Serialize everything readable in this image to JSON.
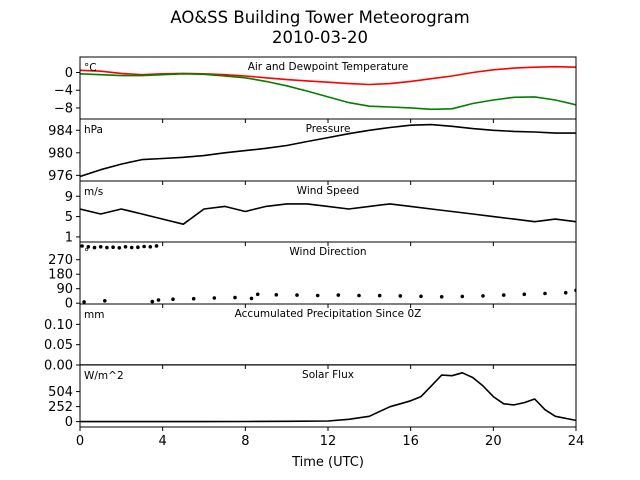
{
  "figure": {
    "title": "AO&SS Building Tower Meteorogram",
    "subtitle": "2010-03-20"
  },
  "chart_data": [
    {
      "type": "line",
      "title": "Air and Dewpoint Temperature",
      "unit_label": "°C",
      "xlim": [
        0,
        24
      ],
      "ylim": [
        -10.5,
        3.5
      ],
      "yticks": [
        0,
        -4,
        -8
      ],
      "series": [
        {
          "color": "#ff0000",
          "x": [
            0,
            1,
            2,
            3,
            4,
            5,
            6,
            7,
            8,
            9,
            10,
            11,
            12,
            13,
            14,
            15,
            16,
            17,
            18,
            19,
            20,
            21,
            22,
            23,
            24
          ],
          "y": [
            0.5,
            0.3,
            -0.2,
            -0.5,
            -0.3,
            -0.2,
            -0.3,
            -0.5,
            -0.8,
            -1.2,
            -1.6,
            -1.9,
            -2.2,
            -2.5,
            -2.7,
            -2.5,
            -2.0,
            -1.4,
            -0.8,
            0.0,
            0.6,
            1.0,
            1.2,
            1.3,
            1.2
          ]
        },
        {
          "color": "#008000",
          "x": [
            0,
            1,
            2,
            3,
            4,
            5,
            6,
            7,
            8,
            9,
            10,
            11,
            12,
            13,
            14,
            15,
            16,
            17,
            18,
            19,
            20,
            21,
            22,
            23,
            24
          ],
          "y": [
            -0.3,
            -0.5,
            -0.7,
            -0.7,
            -0.5,
            -0.3,
            -0.4,
            -0.8,
            -1.2,
            -2.0,
            -3.0,
            -4.2,
            -5.5,
            -6.8,
            -7.6,
            -7.8,
            -8.0,
            -8.3,
            -8.2,
            -7.0,
            -6.2,
            -5.6,
            -5.5,
            -6.2,
            -7.3
          ]
        }
      ]
    },
    {
      "type": "line",
      "title": "Pressure",
      "unit_label": "hPa",
      "xlim": [
        0,
        24
      ],
      "ylim": [
        975,
        986
      ],
      "yticks": [
        984,
        980,
        976
      ],
      "series": [
        {
          "color": "#000000",
          "x": [
            0,
            1,
            2,
            3,
            4,
            5,
            6,
            7,
            8,
            9,
            10,
            11,
            12,
            13,
            14,
            15,
            16,
            17,
            18,
            19,
            20,
            21,
            22,
            23,
            24
          ],
          "y": [
            975.8,
            977.0,
            978.0,
            978.8,
            979.0,
            979.2,
            979.5,
            980.0,
            980.4,
            980.8,
            981.3,
            982.0,
            982.7,
            983.4,
            984.0,
            984.5,
            984.9,
            985.0,
            984.7,
            984.3,
            984.0,
            983.8,
            983.7,
            983.5,
            983.5
          ]
        }
      ]
    },
    {
      "type": "line",
      "title": "Wind Speed",
      "unit_label": "m/s",
      "xlim": [
        0,
        24
      ],
      "ylim": [
        0,
        12
      ],
      "yticks": [
        9,
        5,
        1
      ],
      "series": [
        {
          "color": "#000000",
          "x": [
            0,
            1,
            2,
            3,
            4,
            5,
            6,
            7,
            8,
            9,
            10,
            11,
            12,
            13,
            14,
            15,
            16,
            17,
            18,
            19,
            20,
            21,
            22,
            23,
            24
          ],
          "y": [
            6.5,
            5.5,
            6.5,
            5.5,
            4.5,
            3.5,
            6.5,
            7.0,
            6.0,
            7.0,
            7.5,
            7.5,
            7.0,
            6.5,
            7.0,
            7.5,
            7.0,
            6.5,
            6.0,
            5.5,
            5.0,
            4.5,
            4.0,
            4.5,
            4.0
          ]
        }
      ]
    },
    {
      "type": "scatter",
      "title": "Wind Direction",
      "unit_label": "°",
      "xlim": [
        0,
        24
      ],
      "ylim": [
        -5,
        380
      ],
      "yticks": [
        270,
        180,
        90,
        0
      ],
      "series": [
        {
          "color": "#000000",
          "x": [
            0.1,
            0.4,
            0.7,
            1.0,
            1.3,
            1.6,
            1.9,
            2.2,
            2.5,
            2.8,
            3.1,
            3.4,
            3.7,
            0.2,
            1.2,
            3.5,
            3.8,
            4.5,
            5.5,
            6.5,
            7.5,
            8.3,
            8.6,
            9.5,
            10.5,
            11.5,
            12.5,
            13.5,
            14.5,
            15.5,
            16.5,
            17.5,
            18.5,
            19.5,
            20.5,
            21.5,
            22.5,
            23.5,
            24.0
          ],
          "y": [
            355,
            350,
            345,
            350,
            345,
            348,
            344,
            350,
            346,
            348,
            352,
            350,
            356,
            8,
            15,
            10,
            20,
            25,
            28,
            32,
            35,
            30,
            55,
            52,
            50,
            48,
            50,
            48,
            47,
            45,
            43,
            40,
            42,
            45,
            50,
            55,
            60,
            65,
            80
          ]
        }
      ]
    },
    {
      "type": "line",
      "title": "Accumulated Precipitation Since 0Z",
      "unit_label": "mm",
      "xlim": [
        0,
        24
      ],
      "ylim": [
        0,
        0.15
      ],
      "yticks": [
        0.1,
        0.05,
        0.0
      ],
      "ytick_labels": [
        "0.10",
        "0.05",
        "0.00"
      ],
      "series": [
        {
          "color": "#000000",
          "x": [
            0,
            24
          ],
          "y": [
            0,
            0
          ]
        }
      ]
    },
    {
      "type": "line",
      "title": "Solar Flux",
      "unit_label": "W/m^2",
      "xlabel": "Time (UTC)",
      "xlim": [
        0,
        24
      ],
      "xticks": [
        0,
        4,
        8,
        12,
        16,
        20,
        24
      ],
      "ylim": [
        -90,
        950
      ],
      "yticks": [
        504,
        252,
        0
      ],
      "series": [
        {
          "color": "#000000",
          "x": [
            0,
            6,
            8,
            10,
            12,
            13,
            14,
            15,
            15.5,
            16,
            16.5,
            17,
            17.5,
            18,
            18.5,
            19,
            19.5,
            20,
            20.5,
            21,
            21.5,
            22,
            22.5,
            23,
            24
          ],
          "y": [
            0,
            0,
            2,
            5,
            10,
            40,
            90,
            250,
            300,
            350,
            420,
            600,
            780,
            770,
            820,
            740,
            600,
            420,
            300,
            280,
            320,
            380,
            200,
            90,
            20
          ]
        }
      ]
    }
  ]
}
